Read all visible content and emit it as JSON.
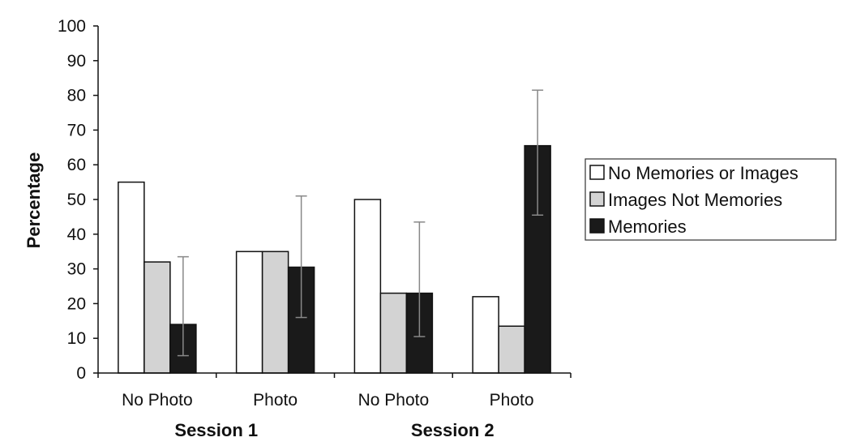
{
  "chart_data": {
    "type": "bar",
    "ylabel": "Percentage",
    "ylim": [
      0,
      100
    ],
    "yticks": [
      0,
      10,
      20,
      30,
      40,
      50,
      60,
      70,
      80,
      90,
      100
    ],
    "categories": [
      "No Photo",
      "Photo",
      "No Photo",
      "Photo"
    ],
    "groups": [
      {
        "label": "Session 1",
        "categories": [
          "No Photo",
          "Photo"
        ]
      },
      {
        "label": "Session 2",
        "categories": [
          "No Photo",
          "Photo"
        ]
      }
    ],
    "series": [
      {
        "name": "No Memories or Images",
        "values": [
          55,
          35,
          50,
          22
        ],
        "color": "#ffffff"
      },
      {
        "name": "Images Not Memories",
        "values": [
          32,
          35,
          23,
          13.5
        ],
        "color": "#d3d3d3"
      },
      {
        "name": "Memories",
        "values": [
          14,
          30.5,
          23,
          65.5
        ],
        "color": "#1a1a1a",
        "error_bars": [
          [
            5,
            33.5
          ],
          [
            16,
            51
          ],
          [
            10.5,
            43.5
          ],
          [
            45.5,
            81.5
          ]
        ]
      }
    ],
    "legend_position": "right",
    "grid": false
  }
}
